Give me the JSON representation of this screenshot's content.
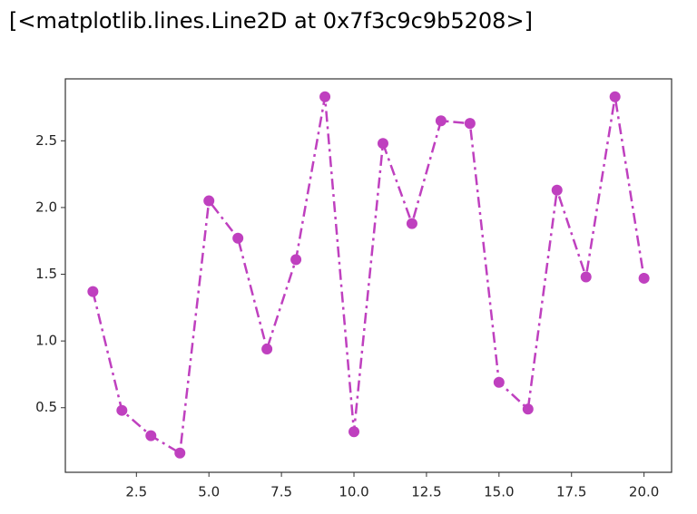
{
  "output_text": "[<matplotlib.lines.Line2D at 0x7f3c9c9b5208>]",
  "chart_data": {
    "type": "line",
    "x": [
      1,
      2,
      3,
      4,
      5,
      6,
      7,
      8,
      9,
      10,
      11,
      12,
      13,
      14,
      15,
      16,
      17,
      18,
      19,
      20
    ],
    "values": [
      1.37,
      0.48,
      0.29,
      0.16,
      2.05,
      1.77,
      0.94,
      1.61,
      2.83,
      0.32,
      2.48,
      1.88,
      2.65,
      2.63,
      0.69,
      0.49,
      2.13,
      1.48,
      2.83,
      1.47
    ],
    "color": "#bf40bf",
    "line_style": "dashdot",
    "marker": "circle",
    "xlim": [
      0.05,
      20.95
    ],
    "ylim": [
      0.016,
      2.964
    ],
    "xticks": [
      2.5,
      {
        "value": 5,
        "label": "5.0"
      },
      7.5,
      {
        "value": 10,
        "label": "10.0"
      },
      12.5,
      {
        "value": 15,
        "label": "15.0"
      },
      17.5,
      {
        "value": 20,
        "label": "20.0"
      }
    ],
    "yticks": [
      0.5,
      {
        "value": 1,
        "label": "1.0"
      },
      1.5,
      {
        "value": 2,
        "label": "2.0"
      },
      2.5
    ],
    "grid": false
  }
}
